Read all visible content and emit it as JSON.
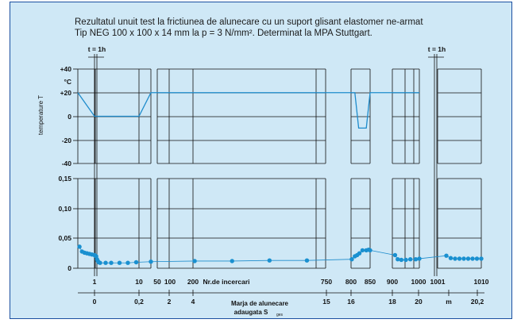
{
  "title": "Rezultatul unuit test la frictiunea de alunecare cu un suport glisant elastomer ne-armat",
  "subtitle": "Tip NEG 100 x 100 x 14 mm la p = 3 N/mm². Determinat la MPA Stuttgart.",
  "pause_labels": [
    "t = 1h",
    "t = 1h"
  ],
  "colors": {
    "background": "#cfe8f6",
    "frame": "#1b4fa0",
    "grid": "#111111",
    "series": "#1e8ccc",
    "marker": "#1a90d0"
  },
  "chart_data": [
    {
      "type": "line",
      "ylabel": "temperature T",
      "unit": "°C",
      "yticks": [
        "+40",
        "+20",
        "0",
        "-20",
        "-40"
      ],
      "ylim": [
        -40,
        40
      ],
      "x": [
        0,
        1,
        9,
        10,
        11,
        12,
        13,
        14,
        14.5,
        15,
        15.5,
        16,
        16.5,
        17,
        18,
        19,
        20
      ],
      "series": [
        {
          "values": [
            20,
            0,
            0,
            20,
            20,
            20,
            20,
            20,
            20,
            20,
            -10,
            -10,
            -10,
            20,
            20,
            20,
            20
          ]
        }
      ]
    },
    {
      "type": "scatter",
      "yticks": [
        "0,15",
        "0,10",
        "0,05",
        "0"
      ],
      "ylim": [
        0,
        0.15
      ],
      "x": [
        0.1,
        0.25,
        0.4,
        0.55,
        0.7,
        0.85,
        1.0,
        1.15,
        1.3,
        1.45,
        1.6,
        1.75,
        2.0,
        3.0,
        4.0,
        5.5,
        7.0,
        8.5,
        10.0,
        11.0,
        12.0,
        13.0,
        14.0,
        14.6,
        15.0,
        15.3,
        15.6,
        16.0,
        16.5,
        16.8,
        17.0,
        17.3,
        17.6,
        18.0,
        18.5,
        19.0,
        19.6,
        20.0,
        20.6,
        20.9,
        21.2,
        21.5,
        21.8,
        22.1,
        22.4,
        22.7,
        23.0
      ],
      "series": [
        {
          "values": [
            0.036,
            0.028,
            0.026,
            0.025,
            0.024,
            0.023,
            0.022,
            0.021,
            0.02,
            0.015,
            0.012,
            0.01,
            0.009,
            0.009,
            0.009,
            0.009,
            0.009,
            0.01,
            0.011,
            0.012,
            0.012,
            0.013,
            0.013,
            0.015,
            0.02,
            0.022,
            0.025,
            0.03,
            0.03,
            0.031,
            0.03,
            0.022,
            0.015,
            0.014,
            0.014,
            0.015,
            0.015,
            0.016,
            0.021,
            0.017,
            0.016,
            0.016,
            0.016,
            0.016,
            0.016,
            0.016,
            0.016
          ]
        }
      ]
    }
  ],
  "x_axis": {
    "cycles_label": "Nr.de incercari",
    "cycles_ticks": [
      "1",
      "10",
      "50",
      "100",
      "200",
      "750",
      "800",
      "850",
      "900",
      "1000",
      "1001",
      "1010"
    ],
    "path_label": "Marja de alunecare",
    "path_label2": "adaugata S",
    "path_label2_sub": "ges",
    "path_ticks": [
      "0",
      "0,2",
      "2",
      "4",
      "15",
      "16",
      "18",
      "20",
      "m",
      "20,2"
    ]
  }
}
